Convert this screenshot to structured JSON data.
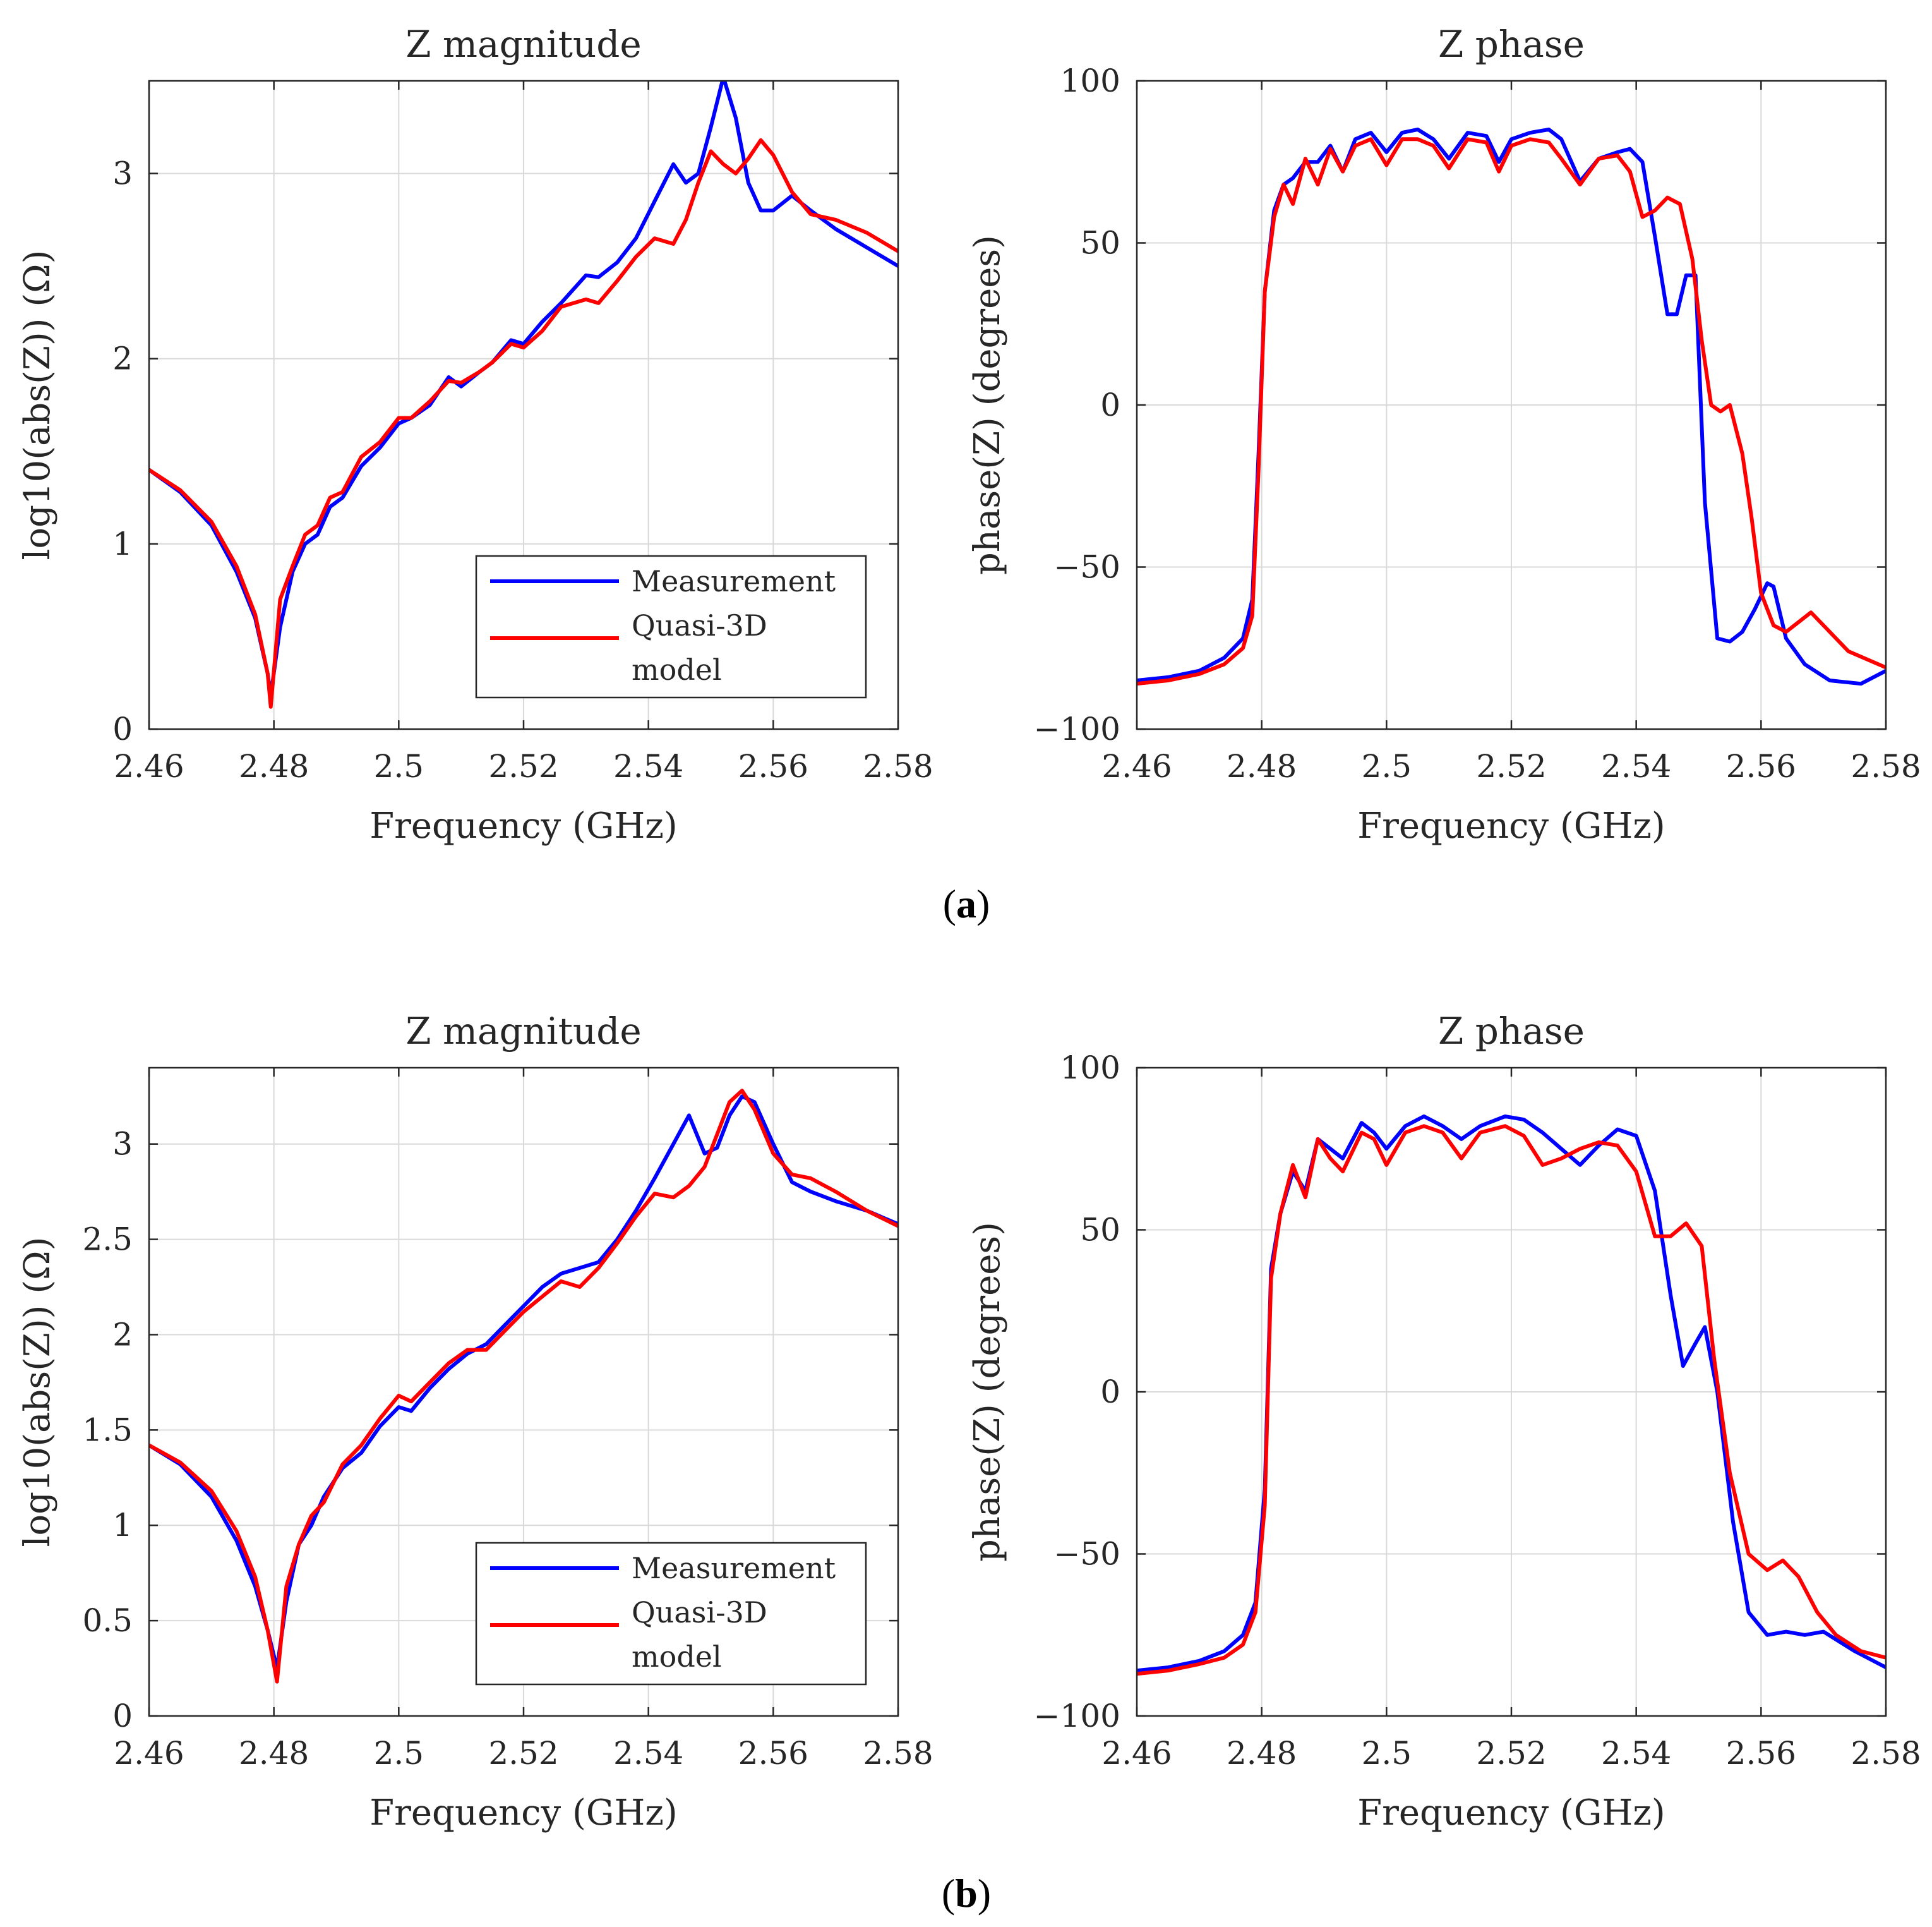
{
  "panel_labels": [
    {
      "open": "(",
      "letter": "a",
      "close": ")"
    },
    {
      "open": "(",
      "letter": "b",
      "close": ")"
    }
  ],
  "colors": {
    "measurement": "#0000ff",
    "model": "#ff0000"
  },
  "chart_data": [
    {
      "type": "line",
      "panel": "a",
      "title": "Z magnitude",
      "xlabel": "Frequency (GHz)",
      "ylabel": "log10(abs(Z)) (Ω)",
      "xlim": [
        2.46,
        2.58
      ],
      "ylim": [
        0,
        3.5
      ],
      "xticks": [
        2.46,
        2.48,
        2.5,
        2.52,
        2.54,
        2.56,
        2.58
      ],
      "xtick_labels": [
        "2.46",
        "2.48",
        "2.5",
        "2.52",
        "2.54",
        "2.56",
        "2.58"
      ],
      "yticks": [
        0,
        1,
        2,
        3
      ],
      "ytick_labels": [
        "0",
        "1",
        "2",
        "3"
      ],
      "grid": true,
      "legend": {
        "position": "bottom-right",
        "entries": [
          "Measurement",
          "Quasi-3D model"
        ]
      },
      "series": [
        {
          "name": "Measurement",
          "color": "#0000ff",
          "x": [
            2.46,
            2.465,
            2.47,
            2.474,
            2.477,
            2.479,
            2.4795,
            2.481,
            2.483,
            2.485,
            2.487,
            2.489,
            2.491,
            2.494,
            2.497,
            2.5,
            2.502,
            2.505,
            2.508,
            2.51,
            2.513,
            2.515,
            2.518,
            2.52,
            2.523,
            2.526,
            2.53,
            2.532,
            2.535,
            2.538,
            2.541,
            2.544,
            2.546,
            2.548,
            2.55,
            2.552,
            2.554,
            2.556,
            2.558,
            2.56,
            2.563,
            2.566,
            2.57,
            2.575,
            2.58
          ],
          "y": [
            1.4,
            1.28,
            1.1,
            0.85,
            0.6,
            0.3,
            0.18,
            0.55,
            0.85,
            1.0,
            1.05,
            1.2,
            1.25,
            1.42,
            1.52,
            1.65,
            1.68,
            1.75,
            1.9,
            1.85,
            1.93,
            1.98,
            2.1,
            2.08,
            2.2,
            2.3,
            2.45,
            2.44,
            2.52,
            2.65,
            2.85,
            3.05,
            2.95,
            3.0,
            3.25,
            3.52,
            3.3,
            2.95,
            2.8,
            2.8,
            2.88,
            2.8,
            2.7,
            2.6,
            2.5
          ]
        },
        {
          "name": "Quasi-3D model",
          "color": "#ff0000",
          "x": [
            2.46,
            2.465,
            2.47,
            2.474,
            2.477,
            2.479,
            2.4795,
            2.481,
            2.483,
            2.485,
            2.487,
            2.489,
            2.491,
            2.494,
            2.497,
            2.5,
            2.502,
            2.505,
            2.508,
            2.51,
            2.513,
            2.515,
            2.518,
            2.52,
            2.523,
            2.526,
            2.53,
            2.532,
            2.535,
            2.538,
            2.541,
            2.544,
            2.546,
            2.548,
            2.55,
            2.552,
            2.554,
            2.556,
            2.558,
            2.56,
            2.563,
            2.566,
            2.57,
            2.575,
            2.58
          ],
          "y": [
            1.4,
            1.29,
            1.12,
            0.88,
            0.62,
            0.3,
            0.12,
            0.7,
            0.88,
            1.05,
            1.1,
            1.25,
            1.28,
            1.47,
            1.55,
            1.68,
            1.68,
            1.77,
            1.88,
            1.87,
            1.93,
            1.98,
            2.08,
            2.06,
            2.15,
            2.28,
            2.32,
            2.3,
            2.42,
            2.55,
            2.65,
            2.62,
            2.75,
            2.95,
            3.12,
            3.05,
            3.0,
            3.08,
            3.18,
            3.1,
            2.9,
            2.78,
            2.75,
            2.68,
            2.58
          ]
        }
      ]
    },
    {
      "type": "line",
      "panel": "a",
      "title": "Z phase",
      "xlabel": "Frequency (GHz)",
      "ylabel": "phase(Z) (degrees)",
      "xlim": [
        2.46,
        2.58
      ],
      "ylim": [
        -100,
        100
      ],
      "xticks": [
        2.46,
        2.48,
        2.5,
        2.52,
        2.54,
        2.56,
        2.58
      ],
      "xtick_labels": [
        "2.46",
        "2.48",
        "2.5",
        "2.52",
        "2.54",
        "2.56",
        "2.58"
      ],
      "yticks": [
        -100,
        -50,
        0,
        50,
        100
      ],
      "ytick_labels": [
        "−100",
        "−50",
        "0",
        "50",
        "100"
      ],
      "grid": true,
      "series": [
        {
          "name": "Measurement",
          "color": "#0000ff",
          "x": [
            2.46,
            2.465,
            2.47,
            2.474,
            2.477,
            2.4785,
            2.4795,
            2.4805,
            2.482,
            2.4835,
            2.485,
            2.487,
            2.489,
            2.491,
            2.493,
            2.495,
            2.4975,
            2.5,
            2.5025,
            2.505,
            2.5075,
            2.51,
            2.513,
            2.516,
            2.518,
            2.52,
            2.523,
            2.526,
            2.528,
            2.531,
            2.534,
            2.537,
            2.539,
            2.541,
            2.543,
            2.545,
            2.5465,
            2.548,
            2.5495,
            2.551,
            2.553,
            2.555,
            2.557,
            2.559,
            2.561,
            2.562,
            2.564,
            2.567,
            2.571,
            2.576,
            2.58
          ],
          "y": [
            -85,
            -84,
            -82,
            -78,
            -72,
            -60,
            -15,
            35,
            60,
            68,
            70,
            75,
            75,
            80,
            72,
            82,
            84,
            78,
            84,
            85,
            82,
            76,
            84,
            83,
            75,
            82,
            84,
            85,
            82,
            69,
            76,
            78,
            79,
            75,
            52,
            28,
            28,
            40,
            40,
            -30,
            -72,
            -73,
            -70,
            -63,
            -55,
            -56,
            -72,
            -80,
            -85,
            -86,
            -82
          ]
        },
        {
          "name": "Quasi-3D model",
          "color": "#ff0000",
          "x": [
            2.46,
            2.465,
            2.47,
            2.474,
            2.477,
            2.4785,
            2.4795,
            2.4805,
            2.482,
            2.4835,
            2.485,
            2.487,
            2.489,
            2.491,
            2.493,
            2.495,
            2.4975,
            2.5,
            2.5025,
            2.505,
            2.5075,
            2.51,
            2.513,
            2.516,
            2.518,
            2.52,
            2.523,
            2.526,
            2.528,
            2.531,
            2.534,
            2.537,
            2.539,
            2.541,
            2.543,
            2.545,
            2.547,
            2.549,
            2.5505,
            2.552,
            2.5535,
            2.555,
            2.557,
            2.5585,
            2.56,
            2.562,
            2.564,
            2.566,
            2.568,
            2.57,
            2.574,
            2.58
          ],
          "y": [
            -86,
            -85,
            -83,
            -80,
            -75,
            -65,
            -20,
            35,
            58,
            68,
            62,
            76,
            68,
            79,
            72,
            80,
            82,
            74,
            82,
            82,
            80,
            73,
            82,
            81,
            72,
            80,
            82,
            81,
            76,
            68,
            76,
            77,
            72,
            58,
            60,
            64,
            62,
            45,
            20,
            0,
            -2,
            0,
            -15,
            -35,
            -58,
            -68,
            -70,
            -67,
            -64,
            -68,
            -76,
            -81
          ]
        }
      ]
    },
    {
      "type": "line",
      "panel": "b",
      "title": "Z magnitude",
      "xlabel": "Frequency (GHz)",
      "ylabel": "log10(abs(Z)) (Ω)",
      "xlim": [
        2.46,
        2.58
      ],
      "ylim": [
        0,
        3.4
      ],
      "xticks": [
        2.46,
        2.48,
        2.5,
        2.52,
        2.54,
        2.56,
        2.58
      ],
      "xtick_labels": [
        "2.46",
        "2.48",
        "2.5",
        "2.52",
        "2.54",
        "2.56",
        "2.58"
      ],
      "yticks": [
        0,
        0.5,
        1,
        1.5,
        2,
        2.5,
        3
      ],
      "ytick_labels": [
        "0",
        "0.5",
        "1",
        "1.5",
        "2",
        "2.5",
        "3"
      ],
      "grid": true,
      "legend": {
        "position": "bottom-right",
        "entries": [
          "Measurement",
          "Quasi-3D model"
        ]
      },
      "series": [
        {
          "name": "Measurement",
          "color": "#0000ff",
          "x": [
            2.46,
            2.465,
            2.47,
            2.474,
            2.477,
            2.479,
            2.4805,
            2.482,
            2.484,
            2.486,
            2.488,
            2.491,
            2.494,
            2.497,
            2.5,
            2.502,
            2.505,
            2.508,
            2.511,
            2.514,
            2.517,
            2.52,
            2.523,
            2.526,
            2.529,
            2.532,
            2.535,
            2.538,
            2.541,
            2.544,
            2.5465,
            2.549,
            2.551,
            2.553,
            2.555,
            2.557,
            2.56,
            2.563,
            2.566,
            2.57,
            2.575,
            2.58
          ],
          "y": [
            1.42,
            1.32,
            1.15,
            0.92,
            0.68,
            0.45,
            0.25,
            0.6,
            0.9,
            1.0,
            1.15,
            1.3,
            1.38,
            1.52,
            1.62,
            1.6,
            1.72,
            1.82,
            1.9,
            1.95,
            2.05,
            2.15,
            2.25,
            2.32,
            2.35,
            2.38,
            2.5,
            2.65,
            2.82,
            3.0,
            3.15,
            2.95,
            2.98,
            3.15,
            3.25,
            3.22,
            3.0,
            2.8,
            2.75,
            2.7,
            2.65,
            2.58
          ]
        },
        {
          "name": "Quasi-3D model",
          "color": "#ff0000",
          "x": [
            2.46,
            2.465,
            2.47,
            2.474,
            2.477,
            2.479,
            2.4805,
            2.482,
            2.484,
            2.486,
            2.488,
            2.491,
            2.494,
            2.497,
            2.5,
            2.502,
            2.505,
            2.508,
            2.511,
            2.514,
            2.517,
            2.52,
            2.523,
            2.526,
            2.529,
            2.532,
            2.535,
            2.538,
            2.541,
            2.544,
            2.5465,
            2.549,
            2.551,
            2.553,
            2.555,
            2.557,
            2.56,
            2.563,
            2.566,
            2.57,
            2.575,
            2.58
          ],
          "y": [
            1.42,
            1.33,
            1.18,
            0.97,
            0.73,
            0.45,
            0.18,
            0.68,
            0.9,
            1.05,
            1.12,
            1.32,
            1.42,
            1.56,
            1.68,
            1.65,
            1.75,
            1.85,
            1.92,
            1.92,
            2.02,
            2.12,
            2.2,
            2.28,
            2.25,
            2.35,
            2.48,
            2.62,
            2.74,
            2.72,
            2.78,
            2.88,
            3.05,
            3.22,
            3.28,
            3.18,
            2.95,
            2.84,
            2.82,
            2.75,
            2.65,
            2.57
          ]
        }
      ]
    },
    {
      "type": "line",
      "panel": "b",
      "title": "Z phase",
      "xlabel": "Frequency (GHz)",
      "ylabel": "phase(Z) (degrees)",
      "xlim": [
        2.46,
        2.58
      ],
      "ylim": [
        -100,
        100
      ],
      "xticks": [
        2.46,
        2.48,
        2.5,
        2.52,
        2.54,
        2.56,
        2.58
      ],
      "xtick_labels": [
        "2.46",
        "2.48",
        "2.5",
        "2.52",
        "2.54",
        "2.56",
        "2.58"
      ],
      "yticks": [
        -100,
        -50,
        0,
        50,
        100
      ],
      "ytick_labels": [
        "−100",
        "−50",
        "0",
        "50",
        "100"
      ],
      "grid": true,
      "series": [
        {
          "name": "Measurement",
          "color": "#0000ff",
          "x": [
            2.46,
            2.465,
            2.47,
            2.474,
            2.477,
            2.479,
            2.4805,
            2.4815,
            2.483,
            2.485,
            2.487,
            2.489,
            2.491,
            2.493,
            2.496,
            2.498,
            2.5,
            2.503,
            2.506,
            2.509,
            2.512,
            2.515,
            2.519,
            2.522,
            2.525,
            2.528,
            2.531,
            2.534,
            2.537,
            2.54,
            2.543,
            2.5455,
            2.5475,
            2.5495,
            2.551,
            2.553,
            2.5555,
            2.558,
            2.561,
            2.564,
            2.567,
            2.57,
            2.575,
            2.58
          ],
          "y": [
            -86,
            -85,
            -83,
            -80,
            -75,
            -65,
            -30,
            38,
            55,
            68,
            62,
            78,
            75,
            72,
            83,
            80,
            75,
            82,
            85,
            82,
            78,
            82,
            85,
            84,
            80,
            75,
            70,
            76,
            81,
            79,
            62,
            30,
            8,
            15,
            20,
            0,
            -40,
            -68,
            -75,
            -74,
            -75,
            -74,
            -80,
            -85
          ]
        },
        {
          "name": "Quasi-3D model",
          "color": "#ff0000",
          "x": [
            2.46,
            2.465,
            2.47,
            2.474,
            2.477,
            2.479,
            2.4805,
            2.4815,
            2.483,
            2.485,
            2.487,
            2.489,
            2.491,
            2.493,
            2.496,
            2.498,
            2.5,
            2.503,
            2.506,
            2.509,
            2.512,
            2.515,
            2.519,
            2.522,
            2.525,
            2.528,
            2.531,
            2.534,
            2.537,
            2.54,
            2.543,
            2.5455,
            2.548,
            2.5505,
            2.5525,
            2.555,
            2.558,
            2.561,
            2.5635,
            2.566,
            2.569,
            2.572,
            2.576,
            2.58
          ],
          "y": [
            -87,
            -86,
            -84,
            -82,
            -78,
            -68,
            -35,
            35,
            55,
            70,
            60,
            78,
            72,
            68,
            80,
            78,
            70,
            80,
            82,
            80,
            72,
            80,
            82,
            79,
            70,
            72,
            75,
            77,
            76,
            68,
            48,
            48,
            52,
            45,
            10,
            -25,
            -50,
            -55,
            -52,
            -57,
            -68,
            -75,
            -80,
            -82
          ]
        }
      ]
    }
  ]
}
